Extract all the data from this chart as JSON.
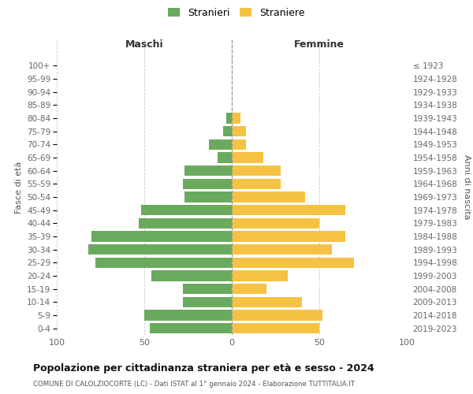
{
  "age_groups": [
    "0-4",
    "5-9",
    "10-14",
    "15-19",
    "20-24",
    "25-29",
    "30-34",
    "35-39",
    "40-44",
    "45-49",
    "50-54",
    "55-59",
    "60-64",
    "65-69",
    "70-74",
    "75-79",
    "80-84",
    "85-89",
    "90-94",
    "95-99",
    "100+"
  ],
  "birth_years": [
    "2019-2023",
    "2014-2018",
    "2009-2013",
    "2004-2008",
    "1999-2003",
    "1994-1998",
    "1989-1993",
    "1984-1988",
    "1979-1983",
    "1974-1978",
    "1969-1973",
    "1964-1968",
    "1959-1963",
    "1954-1958",
    "1949-1953",
    "1944-1948",
    "1939-1943",
    "1934-1938",
    "1929-1933",
    "1924-1928",
    "≤ 1923"
  ],
  "males": [
    47,
    50,
    28,
    28,
    46,
    78,
    82,
    80,
    53,
    52,
    27,
    28,
    27,
    8,
    13,
    5,
    3,
    0,
    0,
    0,
    0
  ],
  "females": [
    50,
    52,
    40,
    20,
    32,
    70,
    57,
    65,
    50,
    65,
    42,
    28,
    28,
    18,
    8,
    8,
    5,
    0,
    0,
    0,
    0
  ],
  "male_color": "#6aaa5e",
  "female_color": "#f5c244",
  "grid_color": "#cccccc",
  "dashed_color": "#999999",
  "title": "Popolazione per cittadinanza straniera per età e sesso - 2024",
  "subtitle": "COMUNE DI CALOLZIOCORTE (LC) - Dati ISTAT al 1° gennaio 2024 - Elaborazione TUTTITALIA.IT",
  "header_left": "Maschi",
  "header_right": "Femmine",
  "ylabel_left": "Fasce di età",
  "ylabel_right": "Anni di nascita",
  "legend_males": "Stranieri",
  "legend_females": "Straniere",
  "xlim": 100,
  "xticks": [
    -100,
    -50,
    0,
    50,
    100
  ],
  "xticklabels": [
    "100",
    "50",
    "0",
    "50",
    "100"
  ]
}
